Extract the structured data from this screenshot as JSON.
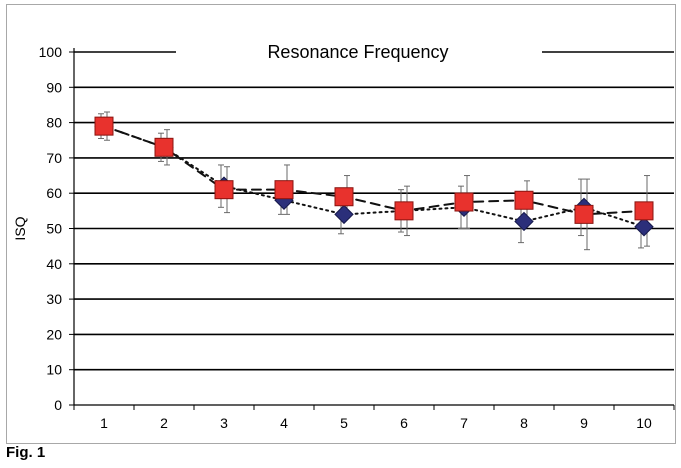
{
  "figure_label": "Fig. 1",
  "chart_data": {
    "type": "line",
    "title": "Resonance Frequency",
    "xlabel": "",
    "ylabel": "ISQ",
    "ylim": [
      0,
      100
    ],
    "yticks": [
      0,
      10,
      20,
      30,
      40,
      50,
      60,
      70,
      80,
      90,
      100
    ],
    "categories": [
      "1",
      "2",
      "3",
      "4",
      "5",
      "6",
      "7",
      "8",
      "9",
      "10"
    ],
    "grid": true,
    "series": [
      {
        "marker": "diamond",
        "color": "#2b2f7a",
        "line": "dotted",
        "values": [
          79,
          73,
          62,
          58,
          54,
          55,
          56,
          52,
          56,
          50.5
        ],
        "error": [
          3.5,
          4,
          6,
          4,
          5.5,
          6,
          6,
          6,
          8,
          6
        ]
      },
      {
        "marker": "square",
        "color": "#e8322d",
        "line": "dashed",
        "values": [
          79,
          73,
          61,
          61,
          59,
          55,
          57.5,
          58,
          54,
          55
        ],
        "error": [
          4,
          5,
          6.5,
          7,
          6,
          7,
          7.5,
          5.5,
          10,
          10
        ]
      }
    ]
  }
}
